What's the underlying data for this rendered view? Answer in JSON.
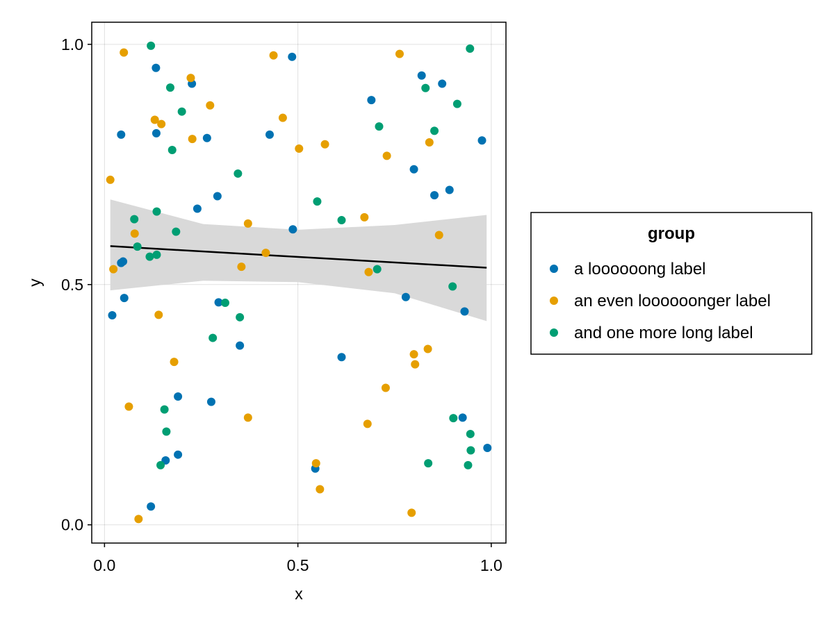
{
  "chart_data": {
    "type": "scatter",
    "xlabel": "x",
    "ylabel": "y",
    "xlim": [
      -0.033,
      1.038
    ],
    "ylim": [
      -0.038,
      1.046
    ],
    "x_ticks": [
      0.0,
      0.5,
      1.0
    ],
    "y_ticks": [
      0.0,
      0.5,
      1.0
    ],
    "x_tick_labels": [
      "0.0",
      "0.5",
      "1.0"
    ],
    "y_tick_labels": [
      "0.0",
      "0.5",
      "1.0"
    ],
    "grid": true,
    "legend": {
      "title": "group",
      "placement": "right"
    },
    "series": [
      {
        "name": "a loooooong label",
        "color": "#0072B2",
        "points": [
          [
            0.02,
            0.436
          ],
          [
            0.043,
            0.545
          ],
          [
            0.048,
            0.548
          ],
          [
            0.051,
            0.472
          ],
          [
            0.043,
            0.812
          ],
          [
            0.12,
            0.038
          ],
          [
            0.133,
            0.951
          ],
          [
            0.134,
            0.815
          ],
          [
            0.158,
            0.134
          ],
          [
            0.19,
            0.146
          ],
          [
            0.19,
            0.267
          ],
          [
            0.226,
            0.918
          ],
          [
            0.24,
            0.658
          ],
          [
            0.265,
            0.805
          ],
          [
            0.276,
            0.256
          ],
          [
            0.292,
            0.684
          ],
          [
            0.295,
            0.463
          ],
          [
            0.35,
            0.373
          ],
          [
            0.427,
            0.812
          ],
          [
            0.485,
            0.974
          ],
          [
            0.487,
            0.615
          ],
          [
            0.545,
            0.117
          ],
          [
            0.613,
            0.349
          ],
          [
            0.69,
            0.884
          ],
          [
            0.779,
            0.474
          ],
          [
            0.8,
            0.74
          ],
          [
            0.82,
            0.935
          ],
          [
            0.853,
            0.686
          ],
          [
            0.873,
            0.918
          ],
          [
            0.892,
            0.697
          ],
          [
            0.926,
            0.223
          ],
          [
            0.931,
            0.444
          ],
          [
            0.976,
            0.8
          ],
          [
            0.99,
            0.16
          ]
        ]
      },
      {
        "name": "an even loooooonger label",
        "color": "#E69F00",
        "points": [
          [
            0.015,
            0.718
          ],
          [
            0.023,
            0.532
          ],
          [
            0.05,
            0.983
          ],
          [
            0.063,
            0.246
          ],
          [
            0.078,
            0.606
          ],
          [
            0.088,
            0.012
          ],
          [
            0.13,
            0.843
          ],
          [
            0.14,
            0.437
          ],
          [
            0.147,
            0.834
          ],
          [
            0.18,
            0.339
          ],
          [
            0.223,
            0.93
          ],
          [
            0.227,
            0.803
          ],
          [
            0.273,
            0.873
          ],
          [
            0.354,
            0.537
          ],
          [
            0.371,
            0.223
          ],
          [
            0.371,
            0.627
          ],
          [
            0.417,
            0.566
          ],
          [
            0.437,
            0.977
          ],
          [
            0.461,
            0.847
          ],
          [
            0.503,
            0.783
          ],
          [
            0.57,
            0.792
          ],
          [
            0.547,
            0.128
          ],
          [
            0.557,
            0.074
          ],
          [
            0.68,
            0.21
          ],
          [
            0.672,
            0.64
          ],
          [
            0.683,
            0.526
          ],
          [
            0.727,
            0.285
          ],
          [
            0.73,
            0.768
          ],
          [
            0.763,
            0.98
          ],
          [
            0.794,
            0.025
          ],
          [
            0.8,
            0.355
          ],
          [
            0.803,
            0.334
          ],
          [
            0.836,
            0.366
          ],
          [
            0.84,
            0.796
          ],
          [
            0.865,
            0.603
          ]
        ]
      },
      {
        "name": "and one more long label",
        "color": "#009E73",
        "points": [
          [
            0.077,
            0.636
          ],
          [
            0.085,
            0.579
          ],
          [
            0.12,
            0.997
          ],
          [
            0.117,
            0.558
          ],
          [
            0.135,
            0.652
          ],
          [
            0.135,
            0.562
          ],
          [
            0.145,
            0.124
          ],
          [
            0.155,
            0.24
          ],
          [
            0.16,
            0.194
          ],
          [
            0.17,
            0.91
          ],
          [
            0.175,
            0.78
          ],
          [
            0.185,
            0.61
          ],
          [
            0.2,
            0.86
          ],
          [
            0.28,
            0.389
          ],
          [
            0.312,
            0.462
          ],
          [
            0.345,
            0.731
          ],
          [
            0.35,
            0.432
          ],
          [
            0.55,
            0.673
          ],
          [
            0.613,
            0.634
          ],
          [
            0.705,
            0.532
          ],
          [
            0.71,
            0.829
          ],
          [
            0.83,
            0.909
          ],
          [
            0.837,
            0.128
          ],
          [
            0.853,
            0.82
          ],
          [
            0.902,
            0.222
          ],
          [
            0.9,
            0.496
          ],
          [
            0.912,
            0.876
          ],
          [
            0.94,
            0.124
          ],
          [
            0.945,
            0.991
          ],
          [
            0.946,
            0.189
          ],
          [
            0.947,
            0.155
          ]
        ]
      }
    ],
    "fit_line": {
      "color": "#000000",
      "x": [
        0.015,
        0.988
      ],
      "y": [
        0.58,
        0.535
      ]
    },
    "confidence_band": {
      "color": "#D9D9D9",
      "x": [
        0.015,
        0.255,
        0.5,
        0.75,
        0.988
      ],
      "upper": [
        0.677,
        0.626,
        0.614,
        0.624,
        0.645
      ],
      "lower": [
        0.488,
        0.508,
        0.505,
        0.482,
        0.424
      ]
    }
  }
}
